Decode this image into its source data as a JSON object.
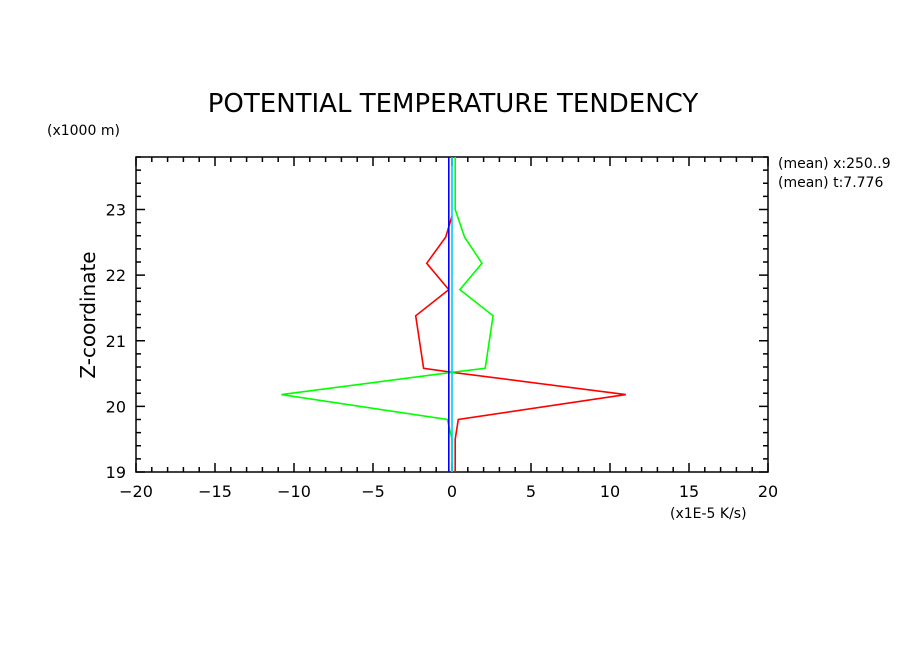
{
  "chart_data": {
    "type": "line",
    "title": "POTENTIAL TEMPERATURE TENDENCY",
    "xlabel": "",
    "ylabel": "Z-coordinate",
    "x_unit": "(x1E-5 K/s)",
    "y_unit": "(x1000 m)",
    "xlim": [
      -20,
      20
    ],
    "ylim": [
      19,
      23.8
    ],
    "x_ticks": [
      -20,
      -15,
      -10,
      -5,
      0,
      5,
      10,
      15,
      20
    ],
    "y_ticks": [
      19,
      20,
      21,
      22,
      23
    ],
    "grid": false,
    "annotations": [
      "(mean) x:250..9",
      "(mean) t:7.776"
    ],
    "series": [
      {
        "color": "#ff0000",
        "points": [
          [
            0.2,
            19.0
          ],
          [
            0.2,
            19.5
          ],
          [
            0.4,
            19.8
          ],
          [
            11.0,
            20.18
          ],
          [
            0.0,
            20.52
          ],
          [
            -1.8,
            20.58
          ],
          [
            -2.3,
            21.38
          ],
          [
            -0.2,
            21.78
          ],
          [
            -1.6,
            22.18
          ],
          [
            -0.4,
            22.58
          ],
          [
            0.0,
            22.9
          ]
        ]
      },
      {
        "color": "#00ff00",
        "points": [
          [
            0.0,
            19.0
          ],
          [
            0.0,
            19.5
          ],
          [
            -0.3,
            19.8
          ],
          [
            -10.8,
            20.18
          ],
          [
            0.0,
            20.52
          ],
          [
            2.1,
            20.58
          ],
          [
            2.6,
            21.38
          ],
          [
            0.5,
            21.78
          ],
          [
            1.9,
            22.18
          ],
          [
            0.8,
            22.58
          ],
          [
            0.2,
            23.0
          ],
          [
            0.2,
            23.8
          ]
        ]
      },
      {
        "color": "#00c8ff",
        "points": [
          [
            0.0,
            19.0
          ],
          [
            0.0,
            23.8
          ]
        ]
      },
      {
        "color": "#0000ff",
        "points": [
          [
            -0.2,
            19.0
          ],
          [
            -0.2,
            23.8
          ]
        ]
      }
    ]
  }
}
